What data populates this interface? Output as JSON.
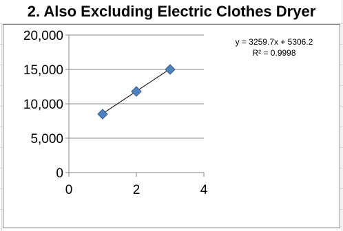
{
  "page_title": "2. Also Excluding Electric Clothes Dryer",
  "chart_data": {
    "type": "scatter",
    "title": "",
    "xlabel": "",
    "ylabel": "",
    "xlim": [
      0,
      4
    ],
    "ylim": [
      0,
      20000
    ],
    "x_ticks": [
      0,
      2,
      4
    ],
    "y_ticks": [
      0,
      5000,
      10000,
      15000,
      20000
    ],
    "x_tick_labels": [
      "0",
      "2",
      "4"
    ],
    "y_tick_labels": [
      "0",
      "5,000",
      "10,000",
      "15,000",
      "20,000"
    ],
    "grid": "horizontal",
    "legend": "none",
    "series": [
      {
        "marker": "diamond",
        "color": "#4f81bd",
        "points": [
          {
            "x": 1,
            "y": 8500
          },
          {
            "x": 2,
            "y": 11800
          },
          {
            "x": 3,
            "y": 15000
          }
        ]
      }
    ],
    "trendline": {
      "type": "linear",
      "slope": 3259.7,
      "intercept": 5306.2,
      "x_range": [
        1,
        3
      ],
      "color": "#000000"
    },
    "annotations": [
      "y = 3259.7x + 5306.2",
      "R² = 0.9998"
    ]
  }
}
